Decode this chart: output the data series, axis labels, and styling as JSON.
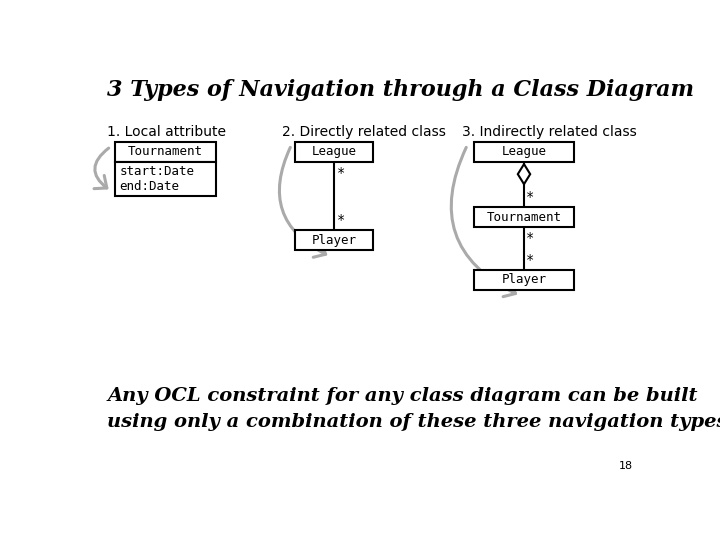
{
  "title": "3 Types of Navigation through a Class Diagram",
  "section1_label": "1. Local attribute",
  "section2_label": "2. Directly related class",
  "section3_label": "3. Indirectly related class",
  "bottom_text1": "Any OCL constraint for any class diagram can be built",
  "bottom_text2": "using only a combination of these three navigation types",
  "page_number": "18",
  "bg_color": "#ffffff",
  "box_color": "#000000",
  "arrow_color": "#aaaaaa",
  "text_color": "#000000"
}
